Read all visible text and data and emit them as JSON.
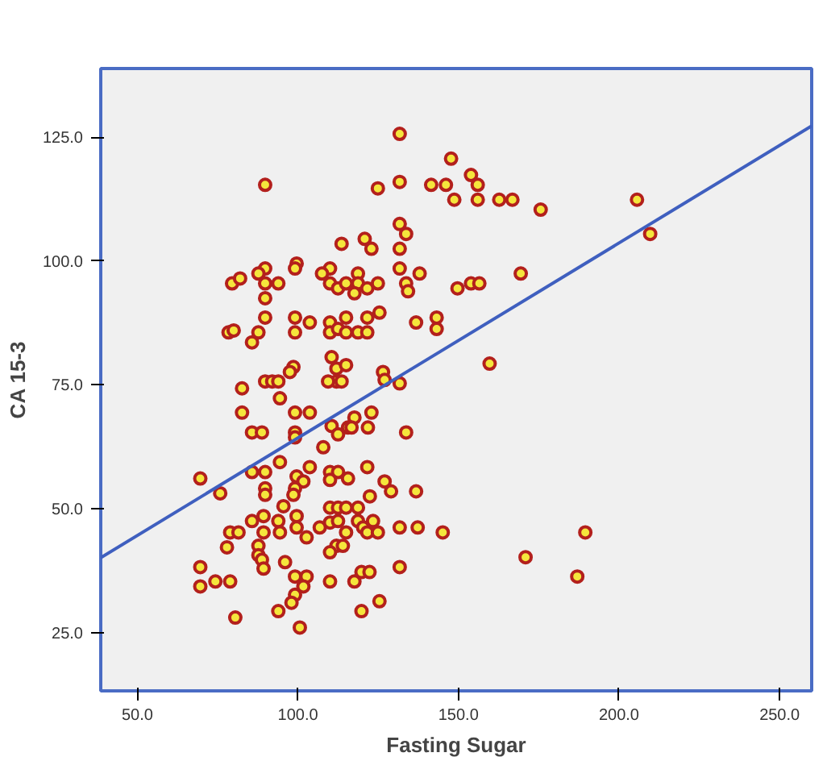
{
  "chart_data": {
    "type": "scatter",
    "xlabel": "Fasting Sugar",
    "ylabel": "CA 15-3",
    "xlim": [
      38.6,
      260
    ],
    "ylim": [
      13.2,
      138.9
    ],
    "xticks": [
      {
        "value": 50,
        "label": "50.0"
      },
      {
        "value": 100,
        "label": "100.0"
      },
      {
        "value": 150,
        "label": "150.0"
      },
      {
        "value": 200,
        "label": "200.0"
      },
      {
        "value": 250,
        "label": "250.0"
      }
    ],
    "yticks": [
      {
        "value": 25,
        "label": "25.0"
      },
      {
        "value": 50,
        "label": "50.0"
      },
      {
        "value": 75,
        "label": "75.0"
      },
      {
        "value": 100,
        "label": "100.0"
      },
      {
        "value": 125,
        "label": "125.0"
      }
    ],
    "marker": "circle",
    "series": [
      {
        "color": "#f5e63c",
        "x": [
          69.6,
          75.8,
          78.9,
          81.5,
          77.9,
          69.6,
          69.6,
          74.3,
          78.9,
          80.5,
          79.5,
          82,
          78.4,
          80,
          82.6,
          82.6,
          131.7,
          89.8,
          124.9,
          131.7,
          131.7,
          133.7,
          113.6,
          120.8,
          122.9,
          131.7,
          99.6,
          99.1,
          89.8,
          87.7,
          89.8,
          93.9,
          89.8,
          110,
          107.5,
          110,
          112.5,
          115,
          118.7,
          118.7,
          121.6,
          124.9,
          117.6,
          131.7,
          137.9,
          133.7,
          134.3,
          125.4,
          136.8,
          89.8,
          87.7,
          85.7,
          99.1,
          99.1,
          103.7,
          110,
          110,
          112.5,
          115,
          115,
          118.7,
          121.6,
          121.6,
          110.5,
          112,
          115,
          98.6,
          97.5,
          126.5,
          127,
          131.7,
          112,
          109.4,
          113.6,
          89.8,
          92,
          93.9,
          94.4,
          99.1,
          103.7,
          117.6,
          122.9,
          115.6,
          110.5,
          85.7,
          88.8,
          99.1,
          121.8,
          133.7,
          99.1,
          112.5,
          116.7,
          107.9,
          94.4,
          103.7,
          121.6,
          85.7,
          89.8,
          99.6,
          101.7,
          110,
          112.5,
          110,
          115.6,
          89.8,
          89.8,
          99.1,
          98.6,
          127,
          129,
          136.8,
          122.4,
          95.5,
          110,
          112.5,
          115,
          118.7,
          99.6,
          89.3,
          93.9,
          85.7,
          89.3,
          94.4,
          99.6,
          102.7,
          106.8,
          110,
          112.5,
          115,
          118.7,
          120.3,
          121.6,
          123.4,
          124.9,
          131.7,
          137.3,
          87.7,
          112,
          114,
          110,
          87.7,
          88.8,
          89.3,
          96,
          99.1,
          102.7,
          101.7,
          99.1,
          98,
          110,
          117.6,
          119.8,
          122.3,
          131.7,
          125.4,
          119.8,
          93.9,
          100.6,
          147.7,
          141.5,
          146.1,
          153.9,
          156,
          148.7,
          156,
          162.7,
          166.8,
          175.6,
          205.6,
          209.7,
          149.7,
          153.9,
          156.5,
          169.4,
          143.2,
          143.2,
          159.7,
          145.1,
          189.5,
          170.9,
          187
        ],
        "values": [
          56.1,
          53.1,
          45.2,
          45.2,
          42.2,
          38.2,
          34.3,
          35.3,
          35.3,
          28,
          95.5,
          96.5,
          85.6,
          86,
          74.3,
          69.4,
          125.7,
          115.4,
          114.7,
          116,
          107.5,
          105.5,
          103.5,
          104.5,
          102.5,
          102.5,
          99.5,
          98.5,
          98.5,
          97.5,
          95.5,
          95.5,
          92.5,
          98.5,
          97.5,
          95.5,
          94.5,
          95.5,
          97.5,
          95.5,
          94.5,
          95.5,
          93.5,
          98.5,
          97.5,
          95.5,
          93.9,
          89.6,
          87.6,
          88.6,
          85.6,
          83.6,
          88.6,
          85.6,
          87.6,
          87.6,
          85.6,
          86.3,
          88.6,
          85.6,
          85.6,
          88.6,
          85.6,
          80.6,
          78.3,
          79,
          78.6,
          77.6,
          77.6,
          76,
          75.3,
          75.7,
          75.7,
          75.7,
          75.7,
          75.7,
          75.7,
          72.3,
          69.4,
          69.4,
          68.4,
          69.4,
          66.4,
          66.7,
          65.4,
          65.4,
          65.4,
          66.4,
          65.4,
          64.4,
          65,
          66.4,
          62.4,
          59.4,
          58.4,
          58.4,
          57.4,
          57.4,
          56.5,
          55.5,
          57.4,
          57.4,
          55.8,
          56.1,
          54.1,
          52.8,
          54.1,
          52.8,
          55.5,
          53.5,
          53.5,
          52.5,
          50.5,
          50.2,
          50.2,
          50.2,
          50.2,
          48.5,
          48.5,
          47.5,
          47.5,
          45.2,
          45.2,
          46.2,
          44.2,
          46.2,
          47.2,
          47.5,
          45.2,
          47.5,
          46.2,
          45.2,
          47.5,
          45.2,
          46.2,
          46.2,
          42.5,
          42.5,
          42.5,
          41.2,
          40.6,
          39.7,
          37.9,
          39.2,
          36.3,
          36.3,
          34.3,
          32.6,
          31,
          35.3,
          35.3,
          37.2,
          37.2,
          38.2,
          31.3,
          29.3,
          29.3,
          26,
          120.7,
          115.4,
          115.4,
          117.4,
          115.4,
          112.4,
          112.4,
          112.4,
          112.4,
          110.4,
          112.4,
          105.5,
          94.5,
          95.5,
          95.5,
          97.5,
          88.6,
          86.3,
          79.3,
          45.2,
          45.2,
          40.2,
          36.3
        ]
      },
      {
        "type": "line",
        "marker": "none",
        "color": "#3f5fbf",
        "x": [
          38.6,
          260
        ],
        "values": [
          40.1,
          127.3
        ]
      }
    ]
  }
}
